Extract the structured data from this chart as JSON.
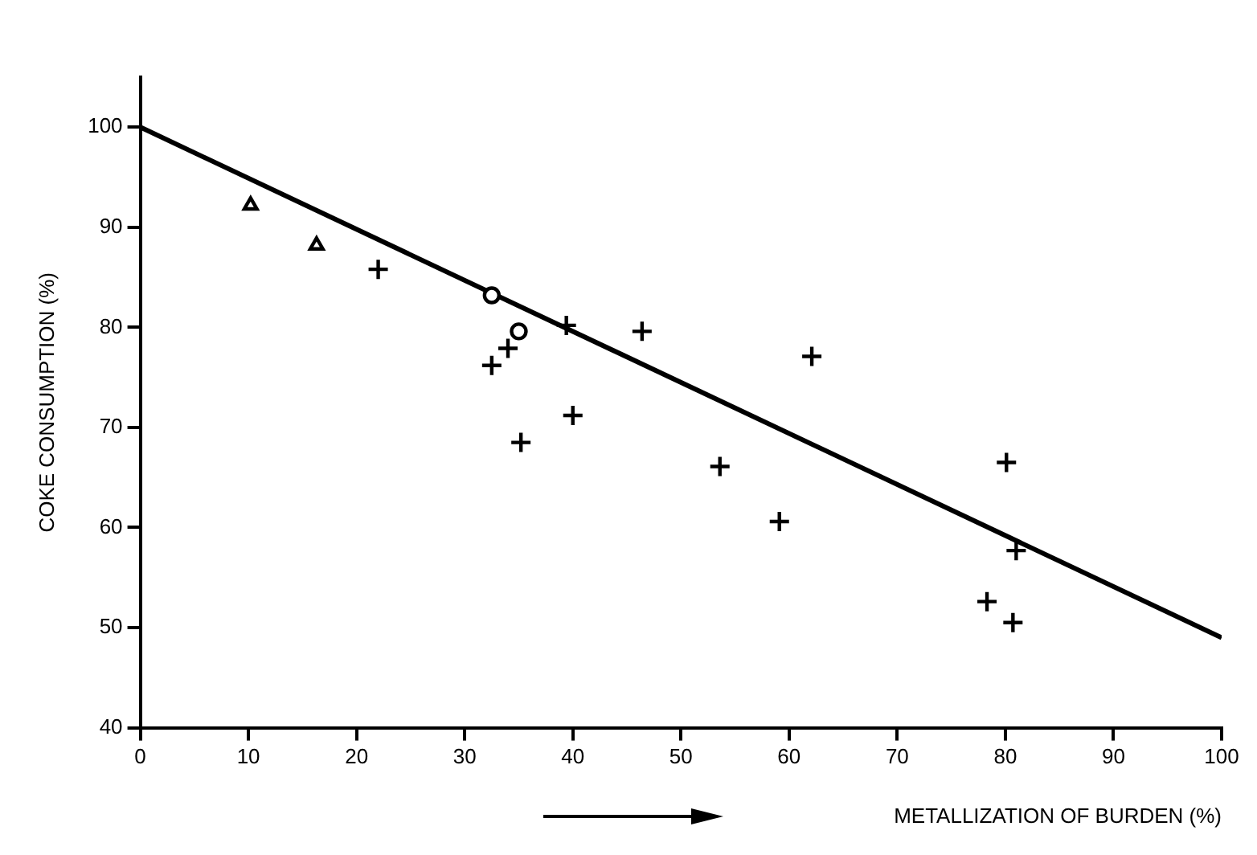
{
  "chart_data": {
    "type": "scatter",
    "xlabel": "METALLIZATION OF BURDEN (%)",
    "ylabel": "COKE CONSUMPTION (%)",
    "xlim": [
      0,
      100
    ],
    "xticks": [
      0,
      10,
      20,
      30,
      40,
      50,
      60,
      70,
      80,
      90,
      100
    ],
    "ylim": [
      40,
      105
    ],
    "yticks": [
      40,
      50,
      60,
      70,
      80,
      90,
      100
    ],
    "grid": false,
    "legend": false,
    "series": [
      {
        "marker": "triangle",
        "color": "#000000",
        "x": [
          10.2,
          16.3
        ],
        "values": [
          92.2,
          88.2
        ]
      },
      {
        "marker": "circle",
        "color": "#000000",
        "x": [
          32.5,
          35
        ],
        "values": [
          83.2,
          79.6
        ]
      },
      {
        "marker": "cross",
        "color": "#000000",
        "x": [
          22,
          34,
          32.5,
          39.4,
          40,
          35.2,
          46.4,
          62.1,
          53.6,
          59.1,
          80.1,
          81,
          78.3,
          80.7
        ],
        "values": [
          85.8,
          77.9,
          76.2,
          80.2,
          71.2,
          68.5,
          79.6,
          77.1,
          66.1,
          60.6,
          66.5,
          57.7,
          52.6,
          50.5
        ]
      },
      {
        "type": "line",
        "marker": "none",
        "line_style": "solid",
        "color": "#000000",
        "x": [
          0,
          100
        ],
        "values": [
          100,
          49
        ]
      }
    ]
  }
}
